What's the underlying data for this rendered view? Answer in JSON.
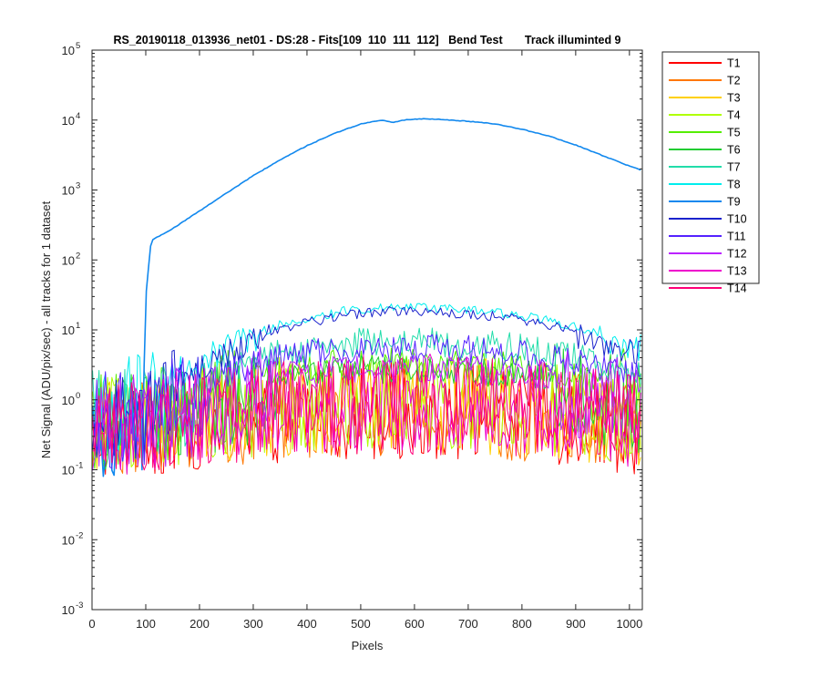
{
  "chart_data": {
    "type": "line",
    "title": "RS_20190118_013936_net01 - DS:28 - Fits[109  110  111  112]   Bend Test       Track illuminted 9",
    "xlabel": "Pixels",
    "ylabel": "Net Signal (ADU/pix/sec) - all tracks for 1 dataset",
    "xlim": [
      0,
      1024
    ],
    "ylim": [
      0.001,
      100000
    ],
    "yscale": "log",
    "grid": false,
    "legend_placement": "outside-top-right",
    "x_ticks": [
      "0",
      "100",
      "200",
      "300",
      "400",
      "500",
      "600",
      "700",
      "800",
      "900",
      "1000"
    ],
    "y_ticks": [
      {
        "base": "10",
        "exp": "-3"
      },
      {
        "base": "10",
        "exp": "-2"
      },
      {
        "base": "10",
        "exp": "-1"
      },
      {
        "base": "10",
        "exp": "0"
      },
      {
        "base": "10",
        "exp": "1"
      },
      {
        "base": "10",
        "exp": "2"
      },
      {
        "base": "10",
        "exp": "3"
      },
      {
        "base": "10",
        "exp": "4"
      },
      {
        "base": "10",
        "exp": "5"
      }
    ],
    "x": [
      0,
      50,
      95,
      100,
      110,
      150,
      200,
      250,
      300,
      350,
      400,
      450,
      500,
      540,
      560,
      580,
      620,
      700,
      750,
      800,
      850,
      900,
      950,
      1000,
      1024
    ],
    "noise_ratio_range": [
      0.1,
      2.5
    ],
    "series": [
      {
        "name": "T1",
        "color": "#ff0000",
        "values": [
          0.7,
          0.72,
          0.75,
          0.76,
          0.78,
          0.85,
          0.95,
          1.05,
          1.15,
          1.25,
          1.32,
          1.38,
          1.42,
          1.43,
          1.44,
          1.44,
          1.43,
          1.38,
          1.33,
          1.26,
          1.18,
          1.08,
          0.97,
          0.85,
          0.8
        ]
      },
      {
        "name": "T2",
        "color": "#ff7700",
        "values": [
          0.75,
          0.77,
          0.8,
          0.81,
          0.83,
          0.9,
          1.0,
          1.1,
          1.2,
          1.3,
          1.38,
          1.45,
          1.5,
          1.51,
          1.52,
          1.52,
          1.5,
          1.45,
          1.4,
          1.32,
          1.24,
          1.14,
          1.02,
          0.9,
          0.85
        ]
      },
      {
        "name": "T3",
        "color": "#ffd000",
        "values": [
          0.8,
          0.82,
          0.85,
          0.86,
          0.88,
          0.97,
          1.1,
          1.23,
          1.36,
          1.48,
          1.58,
          1.66,
          1.72,
          1.73,
          1.74,
          1.74,
          1.72,
          1.66,
          1.6,
          1.5,
          1.4,
          1.28,
          1.15,
          1.0,
          0.95
        ]
      },
      {
        "name": "T4",
        "color": "#b0ff00",
        "values": [
          0.85,
          0.88,
          0.9,
          0.92,
          0.95,
          1.05,
          1.2,
          1.35,
          1.5,
          1.65,
          1.78,
          1.88,
          1.95,
          1.97,
          1.98,
          1.98,
          1.96,
          1.88,
          1.8,
          1.7,
          1.58,
          1.45,
          1.3,
          1.12,
          1.05
        ]
      },
      {
        "name": "T5",
        "color": "#55ee00",
        "values": [
          0.95,
          1.0,
          1.02,
          1.05,
          1.1,
          1.3,
          1.65,
          2.1,
          2.6,
          3.1,
          3.6,
          4.0,
          4.3,
          4.4,
          4.45,
          4.45,
          4.4,
          4.2,
          4.0,
          3.7,
          3.35,
          2.95,
          2.55,
          2.15,
          2.0
        ]
      },
      {
        "name": "T6",
        "color": "#22cc33",
        "values": [
          0.9,
          0.95,
          0.98,
          1.0,
          1.05,
          1.2,
          1.5,
          1.85,
          2.2,
          2.55,
          2.85,
          3.1,
          3.25,
          3.3,
          3.32,
          3.32,
          3.3,
          3.15,
          3.0,
          2.8,
          2.55,
          2.3,
          2.0,
          1.7,
          1.6
        ]
      },
      {
        "name": "T7",
        "color": "#22ddaa",
        "values": [
          1.1,
          1.15,
          1.2,
          1.25,
          1.35,
          1.75,
          2.4,
          3.3,
          4.4,
          5.6,
          6.7,
          7.6,
          8.2,
          8.4,
          8.5,
          8.5,
          8.4,
          7.9,
          7.4,
          6.7,
          5.9,
          5.0,
          4.1,
          3.3,
          3.0
        ]
      },
      {
        "name": "T8",
        "color": "#00eeee",
        "values": [
          1.7,
          1.75,
          1.8,
          1.85,
          2.0,
          2.8,
          4.3,
          6.5,
          9.3,
          12.5,
          15.8,
          18.8,
          21.5,
          22.5,
          23.0,
          23.0,
          22.8,
          21.0,
          19.5,
          17.3,
          14.8,
          12.2,
          9.5,
          7.3,
          6.5
        ]
      },
      {
        "name": "T9",
        "color": "#1188ee",
        "values": [
          0.75,
          0.8,
          0.85,
          30.0,
          190.0,
          280.0,
          500.0,
          900.0,
          1600.0,
          2700.0,
          4300.0,
          6400.0,
          8800.0,
          10000.0,
          9200.0,
          10000.0,
          10500.0,
          9600.0,
          8800.0,
          7400.0,
          5900.0,
          4400.0,
          3100.0,
          2200.0,
          1900.0
        ]
      },
      {
        "name": "T10",
        "color": "#1a22cc",
        "values": [
          1.3,
          1.35,
          1.4,
          1.45,
          1.6,
          2.3,
          3.6,
          5.6,
          8.0,
          10.8,
          13.6,
          16.2,
          18.5,
          19.5,
          20.0,
          20.0,
          19.8,
          18.2,
          16.8,
          14.8,
          12.5,
          10.2,
          8.0,
          6.3,
          5.8
        ]
      },
      {
        "name": "T11",
        "color": "#5522ff",
        "values": [
          1.0,
          1.05,
          1.1,
          1.15,
          1.25,
          1.6,
          2.2,
          3.0,
          3.9,
          4.8,
          5.6,
          6.2,
          6.6,
          6.7,
          6.75,
          6.75,
          6.7,
          6.35,
          6.0,
          5.4,
          4.8,
          4.1,
          3.4,
          2.7,
          2.5
        ]
      },
      {
        "name": "T12",
        "color": "#bb22ff",
        "values": [
          0.9,
          0.93,
          0.95,
          0.97,
          1.0,
          1.15,
          1.45,
          1.8,
          2.2,
          2.6,
          2.95,
          3.2,
          3.35,
          3.4,
          3.42,
          3.42,
          3.4,
          3.25,
          3.1,
          2.85,
          2.6,
          2.3,
          2.0,
          1.7,
          1.6
        ]
      },
      {
        "name": "T13",
        "color": "#ee00cc",
        "values": [
          0.8,
          0.82,
          0.85,
          0.87,
          0.9,
          1.0,
          1.15,
          1.3,
          1.45,
          1.6,
          1.72,
          1.82,
          1.88,
          1.9,
          1.9,
          1.9,
          1.88,
          1.82,
          1.75,
          1.65,
          1.53,
          1.4,
          1.26,
          1.1,
          1.05
        ]
      },
      {
        "name": "T14",
        "color": "#ff0077",
        "values": [
          0.75,
          0.77,
          0.8,
          0.81,
          0.83,
          0.92,
          1.05,
          1.18,
          1.3,
          1.42,
          1.52,
          1.6,
          1.65,
          1.66,
          1.67,
          1.67,
          1.65,
          1.6,
          1.54,
          1.45,
          1.35,
          1.24,
          1.12,
          0.98,
          0.92
        ]
      }
    ]
  }
}
